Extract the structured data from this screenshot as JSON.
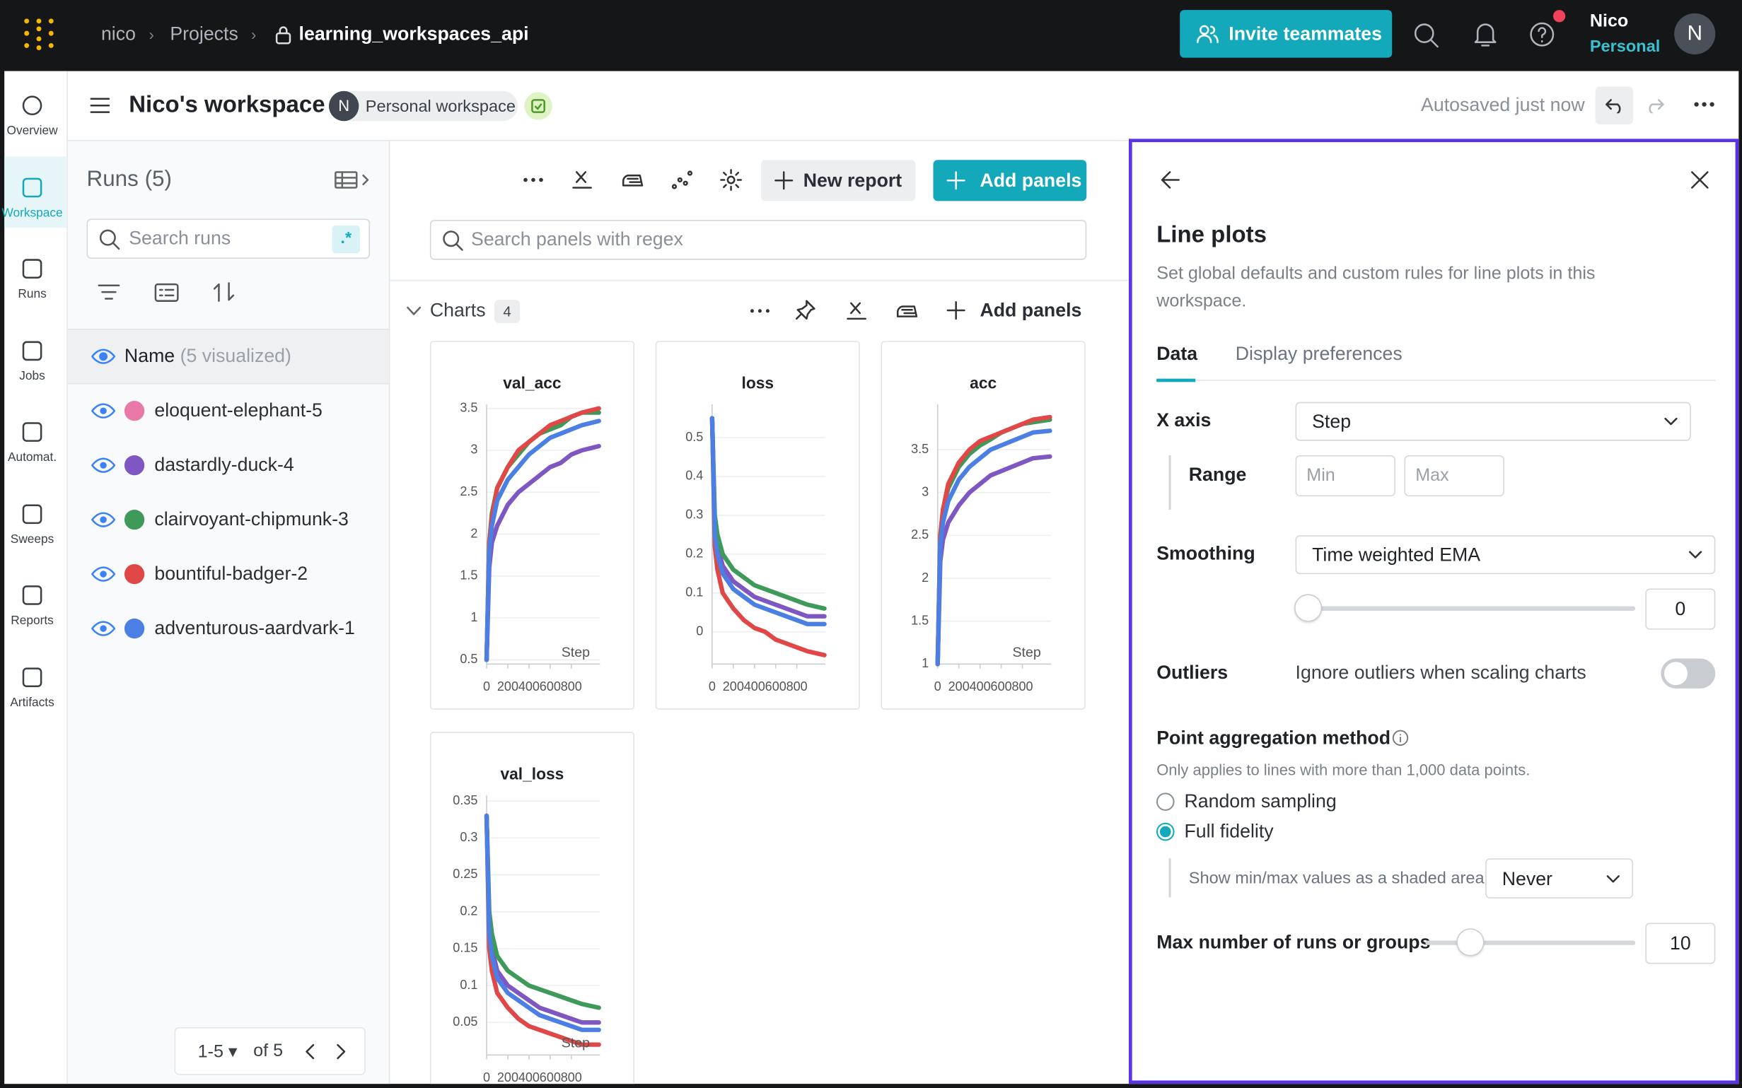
{
  "topbar": {
    "breadcrumb": [
      "nico",
      "Projects",
      "learning_workspaces_api"
    ],
    "invite_button": "Invite teammates",
    "user": {
      "name": "Nico",
      "plan": "Personal",
      "avatar": "N"
    }
  },
  "sidebar": {
    "items": [
      "Overview",
      "Workspace",
      "Runs",
      "Jobs",
      "Automat.",
      "Sweeps",
      "Reports",
      "Artifacts"
    ],
    "active": 1
  },
  "header": {
    "title": "Nico's workspace",
    "avatar": "N",
    "badge": "Personal workspace",
    "status": "Autosaved just now"
  },
  "runs_panel": {
    "title": "Runs (5)",
    "search_placeholder": "Search runs",
    "regex": ".*",
    "name_column": "Name",
    "visualized": "(5 visualized)",
    "runs": [
      {
        "name": "eloquent-elephant-5",
        "color": "#e879a8"
      },
      {
        "name": "dastardly-duck-4",
        "color": "#7e57c2"
      },
      {
        "name": "clairvoyant-chipmunk-3",
        "color": "#3d9a58"
      },
      {
        "name": "bountiful-badger-2",
        "color": "#e04848"
      },
      {
        "name": "adventurous-aardvark-1",
        "color": "#4b7fe3"
      }
    ],
    "pagination": {
      "range": "1-5",
      "total": "of 5"
    }
  },
  "panels": {
    "new_report": "New report",
    "add_panels": "Add panels",
    "search_placeholder": "Search panels with regex",
    "section": {
      "title": "Charts",
      "count": 4,
      "add_panels": "Add panels"
    },
    "charts": [
      {
        "type": "line",
        "title": "val_acc",
        "xlabel": "Step",
        "xlim": [
          0,
          1070
        ],
        "xticks": [
          0,
          200,
          400,
          600,
          800
        ],
        "ylim": [
          0.45,
          3.55
        ],
        "yticks": [
          0.5,
          1,
          1.5,
          2,
          2.5,
          3,
          3.5
        ],
        "x": [
          0,
          25,
          50,
          100,
          200,
          300,
          400,
          500,
          600,
          700,
          800,
          900,
          1060
        ],
        "series": [
          {
            "color": "#7e57c2",
            "values": [
              0.5,
              1.6,
              1.9,
              2.1,
              2.35,
              2.5,
              2.6,
              2.7,
              2.8,
              2.85,
              2.95,
              3.0,
              3.05
            ]
          },
          {
            "color": "#3d9a58",
            "values": [
              0.5,
              1.9,
              2.25,
              2.55,
              2.8,
              2.95,
              3.1,
              3.2,
              3.25,
              3.3,
              3.4,
              3.45,
              3.45
            ]
          },
          {
            "color": "#e04848",
            "values": [
              0.5,
              1.9,
              2.2,
              2.55,
              2.8,
              3.0,
              3.1,
              3.2,
              3.3,
              3.35,
              3.4,
              3.45,
              3.5
            ]
          },
          {
            "color": "#4b7fe3",
            "values": [
              0.5,
              1.8,
              2.1,
              2.4,
              2.65,
              2.8,
              2.95,
              3.05,
              3.15,
              3.2,
              3.25,
              3.3,
              3.35
            ]
          }
        ]
      },
      {
        "type": "line",
        "title": "loss",
        "xlim": [
          0,
          1070
        ],
        "xticks": [
          0,
          200,
          400,
          600,
          800
        ],
        "ylim": [
          -0.083,
          0.586
        ],
        "yticks": [
          0,
          0.1,
          0.2,
          0.3,
          0.4,
          0.5
        ],
        "x": [
          0,
          25,
          50,
          100,
          200,
          300,
          400,
          500,
          600,
          700,
          800,
          900,
          1060
        ],
        "series": [
          {
            "color": "#7e57c2",
            "values": [
              0.55,
              0.27,
              0.22,
              0.17,
              0.13,
              0.11,
              0.09,
              0.08,
              0.07,
              0.06,
              0.05,
              0.04,
              0.04
            ]
          },
          {
            "color": "#3d9a58",
            "values": [
              0.55,
              0.3,
              0.25,
              0.2,
              0.16,
              0.14,
              0.12,
              0.11,
              0.1,
              0.09,
              0.08,
              0.07,
              0.06
            ]
          },
          {
            "color": "#e04848",
            "values": [
              0.55,
              0.22,
              0.16,
              0.1,
              0.06,
              0.03,
              0.01,
              0,
              -0.02,
              -0.03,
              -0.04,
              -0.05,
              -0.06
            ]
          },
          {
            "color": "#4b7fe3",
            "values": [
              0.55,
              0.25,
              0.2,
              0.15,
              0.11,
              0.09,
              0.07,
              0.06,
              0.05,
              0.04,
              0.03,
              0.02,
              0.02
            ]
          }
        ]
      },
      {
        "type": "line",
        "title": "acc",
        "xlabel": "Step",
        "xlim": [
          0,
          1070
        ],
        "xticks": [
          0,
          200,
          400,
          600,
          800
        ],
        "ylim": [
          1.0,
          4.03
        ],
        "yticks": [
          1,
          1.5,
          2,
          2.5,
          3,
          3.5
        ],
        "x": [
          0,
          25,
          50,
          100,
          200,
          300,
          400,
          500,
          600,
          700,
          800,
          900,
          1060
        ],
        "series": [
          {
            "color": "#7e57c2",
            "values": [
              1,
              2.2,
              2.45,
              2.65,
              2.85,
              3.0,
              3.1,
              3.2,
              3.25,
              3.3,
              3.35,
              3.4,
              3.42
            ]
          },
          {
            "color": "#3d9a58",
            "values": [
              1,
              2.5,
              2.8,
              3.05,
              3.3,
              3.45,
              3.55,
              3.62,
              3.7,
              3.75,
              3.8,
              3.82,
              3.85
            ]
          },
          {
            "color": "#e04848",
            "values": [
              1,
              2.5,
              2.8,
              3.1,
              3.35,
              3.5,
              3.6,
              3.65,
              3.7,
              3.75,
              3.8,
              3.85,
              3.88
            ]
          },
          {
            "color": "#4b7fe3",
            "values": [
              1,
              2.4,
              2.65,
              2.9,
              3.15,
              3.3,
              3.4,
              3.5,
              3.55,
              3.6,
              3.65,
              3.7,
              3.72
            ]
          }
        ]
      },
      {
        "type": "line",
        "title": "val_loss",
        "xlabel": "Step",
        "xlim": [
          0,
          1070
        ],
        "xticks": [
          0,
          200,
          400,
          600,
          800
        ],
        "ylim": [
          0.006,
          0.358
        ],
        "yticks": [
          0.05,
          0.1,
          0.15,
          0.2,
          0.25,
          0.3,
          0.35
        ],
        "x": [
          0,
          25,
          50,
          100,
          200,
          300,
          400,
          500,
          600,
          700,
          800,
          900,
          1060
        ],
        "series": [
          {
            "color": "#7e57c2",
            "values": [
              0.33,
              0.18,
              0.15,
              0.12,
              0.1,
              0.09,
              0.08,
              0.07,
              0.065,
              0.06,
              0.055,
              0.05,
              0.05
            ]
          },
          {
            "color": "#3d9a58",
            "values": [
              0.33,
              0.2,
              0.17,
              0.14,
              0.12,
              0.11,
              0.1,
              0.095,
              0.09,
              0.085,
              0.08,
              0.075,
              0.07
            ]
          },
          {
            "color": "#e04848",
            "values": [
              0.33,
              0.15,
              0.12,
              0.09,
              0.07,
              0.055,
              0.045,
              0.04,
              0.035,
              0.03,
              0.025,
              0.02,
              0.02
            ]
          },
          {
            "color": "#4b7fe3",
            "values": [
              0.33,
              0.17,
              0.14,
              0.11,
              0.09,
              0.08,
              0.07,
              0.06,
              0.055,
              0.05,
              0.045,
              0.04,
              0.04
            ]
          }
        ]
      }
    ]
  },
  "settings": {
    "title": "Line plots",
    "description": "Set global defaults and custom rules for line plots in this workspace.",
    "tabs": [
      "Data",
      "Display preferences"
    ],
    "active_tab": 0,
    "x_axis": {
      "label": "X axis",
      "value": "Step",
      "range_label": "Range",
      "min_placeholder": "Min",
      "max_placeholder": "Max"
    },
    "smoothing": {
      "label": "Smoothing",
      "value": "Time weighted EMA",
      "amount": 0
    },
    "outliers": {
      "label": "Outliers",
      "text": "Ignore outliers when scaling charts",
      "enabled": false
    },
    "aggregation": {
      "label": "Point aggregation method",
      "note": "Only applies to lines with more than 1,000 data points.",
      "options": [
        "Random sampling",
        "Full fidelity"
      ],
      "selected": 1,
      "shaded_label": "Show min/max values as a shaded area",
      "shaded_value": "Never"
    },
    "max_runs": {
      "label": "Max number of runs or groups",
      "value": 10
    }
  }
}
